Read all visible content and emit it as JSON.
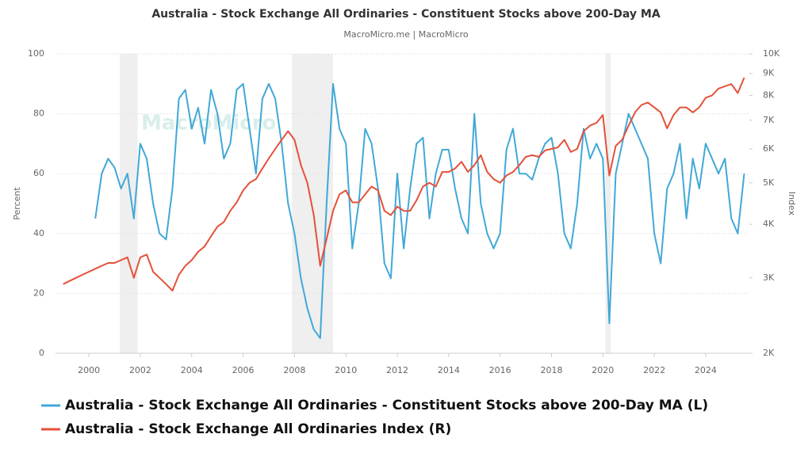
{
  "chart_data": {
    "type": "line",
    "title": "Australia - Stock Exchange All Ordinaries - Constituent Stocks above 200-Day MA",
    "subtitle": "MacroMicro.me | MacroMicro",
    "watermark": "MacroMicro",
    "ylabel": "Percent",
    "y2label": "Index",
    "xlim": [
      1998.7,
      2025.7
    ],
    "xticks": [
      2000,
      2002,
      2004,
      2006,
      2008,
      2010,
      2012,
      2014,
      2016,
      2018,
      2020,
      2022,
      2024
    ],
    "ylim": [
      0,
      100
    ],
    "yticks": [
      0,
      20,
      40,
      60,
      80,
      100
    ],
    "y2lim": [
      2000,
      10000
    ],
    "y2_log": true,
    "y2ticks": [
      {
        "value": 2000,
        "label": "2K"
      },
      {
        "value": 3000,
        "label": "3K"
      },
      {
        "value": 4000,
        "label": "4K"
      },
      {
        "value": 5000,
        "label": "5K"
      },
      {
        "value": 6000,
        "label": "6K"
      },
      {
        "value": 7000,
        "label": "7K"
      },
      {
        "value": 8000,
        "label": "8K"
      },
      {
        "value": 9000,
        "label": "9K"
      },
      {
        "value": 10000,
        "label": "10K"
      }
    ],
    "grid": true,
    "shaded_periods": [
      [
        2001.2,
        2001.9
      ],
      [
        2007.9,
        2009.5
      ],
      [
        2020.1,
        2020.3
      ]
    ],
    "x": [
      1999,
      1999.25,
      1999.5,
      1999.75,
      2000,
      2000.25,
      2000.5,
      2000.75,
      2001,
      2001.25,
      2001.5,
      2001.75,
      2002,
      2002.25,
      2002.5,
      2002.75,
      2003,
      2003.25,
      2003.5,
      2003.75,
      2004,
      2004.25,
      2004.5,
      2004.75,
      2005,
      2005.25,
      2005.5,
      2005.75,
      2006,
      2006.25,
      2006.5,
      2006.75,
      2007,
      2007.25,
      2007.5,
      2007.75,
      2008,
      2008.25,
      2008.5,
      2008.75,
      2009,
      2009.25,
      2009.5,
      2009.75,
      2010,
      2010.25,
      2010.5,
      2010.75,
      2011,
      2011.25,
      2011.5,
      2011.75,
      2012,
      2012.25,
      2012.5,
      2012.75,
      2013,
      2013.25,
      2013.5,
      2013.75,
      2014,
      2014.25,
      2014.5,
      2014.75,
      2015,
      2015.25,
      2015.5,
      2015.75,
      2016,
      2016.25,
      2016.5,
      2016.75,
      2017,
      2017.25,
      2017.5,
      2017.75,
      2018,
      2018.25,
      2018.5,
      2018.75,
      2019,
      2019.25,
      2019.5,
      2019.75,
      2020,
      2020.25,
      2020.5,
      2020.75,
      2021,
      2021.25,
      2021.5,
      2021.75,
      2022,
      2022.25,
      2022.5,
      2022.75,
      2023,
      2023.25,
      2023.5,
      2023.75,
      2024,
      2024.25,
      2024.5,
      2024.75,
      2025,
      2025.25,
      2025.5
    ],
    "series": [
      {
        "name": "Australia - Stock Exchange All Ordinaries - Constituent Stocks above 200-Day MA (L)",
        "color": "#41a8d8",
        "axis": "y",
        "values": [
          null,
          null,
          null,
          null,
          null,
          45,
          60,
          65,
          62,
          55,
          60,
          45,
          70,
          65,
          50,
          40,
          38,
          55,
          85,
          88,
          75,
          82,
          70,
          88,
          80,
          65,
          70,
          88,
          90,
          75,
          60,
          85,
          90,
          85,
          70,
          50,
          40,
          25,
          15,
          8,
          5,
          50,
          90,
          75,
          70,
          35,
          50,
          75,
          70,
          55,
          30,
          25,
          60,
          35,
          55,
          70,
          72,
          45,
          60,
          68,
          68,
          55,
          45,
          40,
          80,
          50,
          40,
          35,
          40,
          68,
          75,
          60,
          60,
          58,
          65,
          70,
          72,
          60,
          40,
          35,
          50,
          75,
          65,
          70,
          65,
          10,
          60,
          70,
          80,
          75,
          70,
          65,
          40,
          30,
          55,
          60,
          70,
          45,
          65,
          55,
          70,
          65,
          60,
          65,
          45,
          40,
          60
        ]
      },
      {
        "name": "Australia - Stock Exchange All Ordinaries Index (R)",
        "color": "#e4513a",
        "axis": "y2",
        "values": [
          2900,
          2950,
          3000,
          3050,
          3100,
          3150,
          3200,
          3250,
          3250,
          3300,
          3350,
          3000,
          3350,
          3400,
          3100,
          3000,
          2900,
          2800,
          3050,
          3200,
          3300,
          3450,
          3550,
          3750,
          3950,
          4050,
          4300,
          4500,
          4800,
          5000,
          5100,
          5400,
          5700,
          6000,
          6300,
          6600,
          6300,
          5500,
          5000,
          4200,
          3200,
          3700,
          4300,
          4700,
          4800,
          4500,
          4500,
          4700,
          4900,
          4800,
          4300,
          4200,
          4400,
          4300,
          4300,
          4550,
          4900,
          5000,
          4900,
          5300,
          5300,
          5400,
          5600,
          5300,
          5500,
          5800,
          5300,
          5100,
          5000,
          5200,
          5300,
          5500,
          5750,
          5800,
          5750,
          5950,
          6000,
          6050,
          6300,
          5900,
          6000,
          6600,
          6800,
          6900,
          7200,
          5200,
          6100,
          6300,
          6800,
          7300,
          7600,
          7700,
          7500,
          7300,
          6700,
          7200,
          7500,
          7500,
          7300,
          7500,
          7900,
          8000,
          8300,
          8400,
          8500,
          8100,
          8800
        ]
      }
    ]
  }
}
